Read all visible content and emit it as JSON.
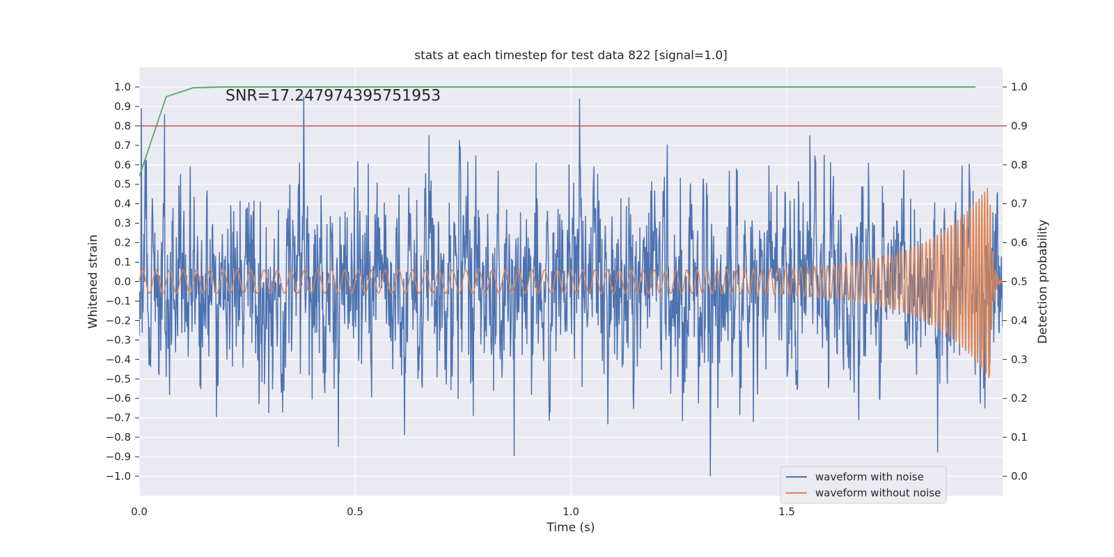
{
  "chart_data": {
    "type": "line",
    "title": "stats at each timestep for test data 822 [signal=1.0]",
    "xlabel": "Time (s)",
    "ylabel": "Whitened strain",
    "y2label": "Detection probability",
    "xlim": [
      0.0,
      2.0
    ],
    "ylim": [
      -1.1,
      1.1
    ],
    "y2lim": [
      -0.05,
      1.05
    ],
    "xticks": [
      0.0,
      0.5,
      1.0,
      1.5
    ],
    "xtick_labels": [
      "0.0",
      "0.5",
      "1.0",
      "1.5"
    ],
    "yticks": [
      -1.0,
      -0.9,
      -0.8,
      -0.7,
      -0.6,
      -0.5,
      -0.4,
      -0.3,
      -0.2,
      -0.1,
      0.0,
      0.1,
      0.2,
      0.3,
      0.4,
      0.5,
      0.6,
      0.7,
      0.8,
      0.9,
      1.0
    ],
    "ytick_labels": [
      "−1.0",
      "−0.9",
      "−0.8",
      "−0.7",
      "−0.6",
      "−0.5",
      "−0.4",
      "−0.3",
      "−0.2",
      "−0.1",
      "0.0",
      "0.1",
      "0.2",
      "0.3",
      "0.4",
      "0.5",
      "0.6",
      "0.7",
      "0.8",
      "0.9",
      "1.0"
    ],
    "y2ticks": [
      0.0,
      0.1,
      0.2,
      0.3,
      0.4,
      0.5,
      0.6,
      0.7,
      0.8,
      0.9,
      1.0
    ],
    "y2tick_labels": [
      "0.0",
      "0.1",
      "0.2",
      "0.3",
      "0.4",
      "0.5",
      "0.6",
      "0.7",
      "0.8",
      "0.9",
      "1.0"
    ],
    "annotation": "SNR=17.247974395751953",
    "grid": true,
    "legend_position": "lower-right",
    "series": [
      {
        "name": "waveform with noise",
        "axis": "left",
        "color": "#4c72b0",
        "kind": "noisy-signal",
        "sample_count": 2048,
        "x_range": [
          0.0,
          2.0
        ],
        "y_range_approx": [
          -1.0,
          0.95
        ]
      },
      {
        "name": "waveform without noise",
        "axis": "left",
        "color": "#dd8452",
        "kind": "chirp",
        "x_range": [
          0.0,
          2.0
        ],
        "start_amplitude": 0.06,
        "peak_amplitude": 0.5,
        "peak_time": 1.97,
        "start_frequency_hz": 32,
        "end_frequency_hz": 160
      },
      {
        "axis": "right",
        "color": "#55a868",
        "x": [
          0.0,
          0.0625,
          0.125,
          0.1875,
          0.25,
          0.5,
          0.75,
          1.0,
          1.25,
          1.5,
          1.75,
          1.9375
        ],
        "values": [
          0.77,
          0.975,
          0.998,
          1.0,
          1.0,
          1.0,
          1.0,
          1.0,
          1.0,
          1.0,
          1.0,
          1.0
        ]
      },
      {
        "axis": "right",
        "color": "#c44e52",
        "kind": "threshold",
        "value": 0.9
      }
    ]
  }
}
